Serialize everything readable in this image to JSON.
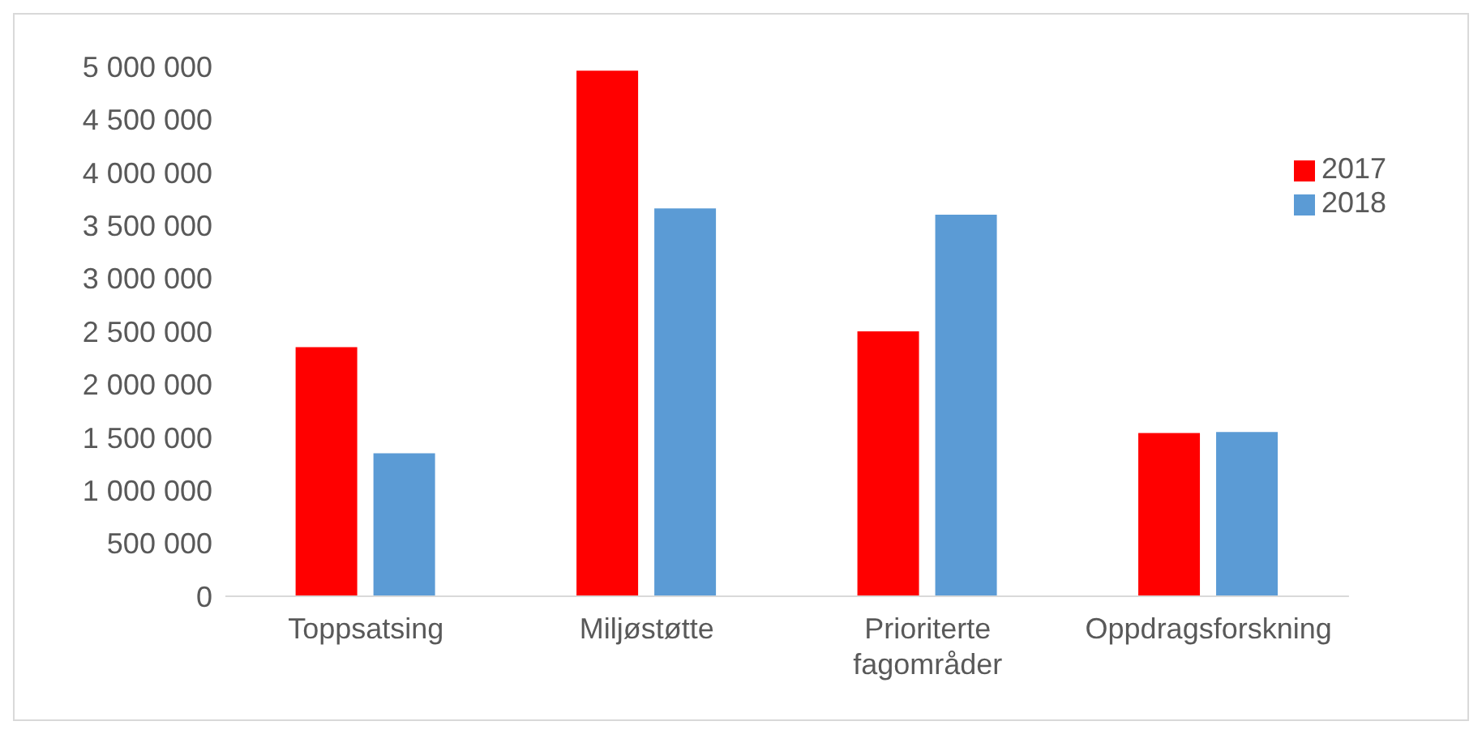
{
  "chart_data": {
    "type": "bar",
    "categories": [
      "Toppsatsing",
      "Miljøstøtte",
      "Prioriterte fagområder",
      "Oppdragsforskning"
    ],
    "series": [
      {
        "name": "2017",
        "color": "#ff0000",
        "values": [
          2350000,
          4960000,
          2500000,
          1540000
        ]
      },
      {
        "name": "2018",
        "color": "#5b9bd5",
        "values": [
          1350000,
          3660000,
          3600000,
          1550000
        ]
      }
    ],
    "ylim": [
      0,
      5000000
    ],
    "yticks": [
      {
        "value": 0,
        "label": "0"
      },
      {
        "value": 500000,
        "label": "500 000"
      },
      {
        "value": 1000000,
        "label": "1 000 000"
      },
      {
        "value": 1500000,
        "label": "1 500 000"
      },
      {
        "value": 2000000,
        "label": "2 000 000"
      },
      {
        "value": 2500000,
        "label": "2 500 000"
      },
      {
        "value": 3000000,
        "label": "3 000 000"
      },
      {
        "value": 3500000,
        "label": "3 500 000"
      },
      {
        "value": 4000000,
        "label": "4 000 000"
      },
      {
        "value": 4500000,
        "label": "4 500 000"
      },
      {
        "value": 5000000,
        "label": "5 000 000"
      }
    ],
    "grid": false,
    "legend": "top right"
  }
}
